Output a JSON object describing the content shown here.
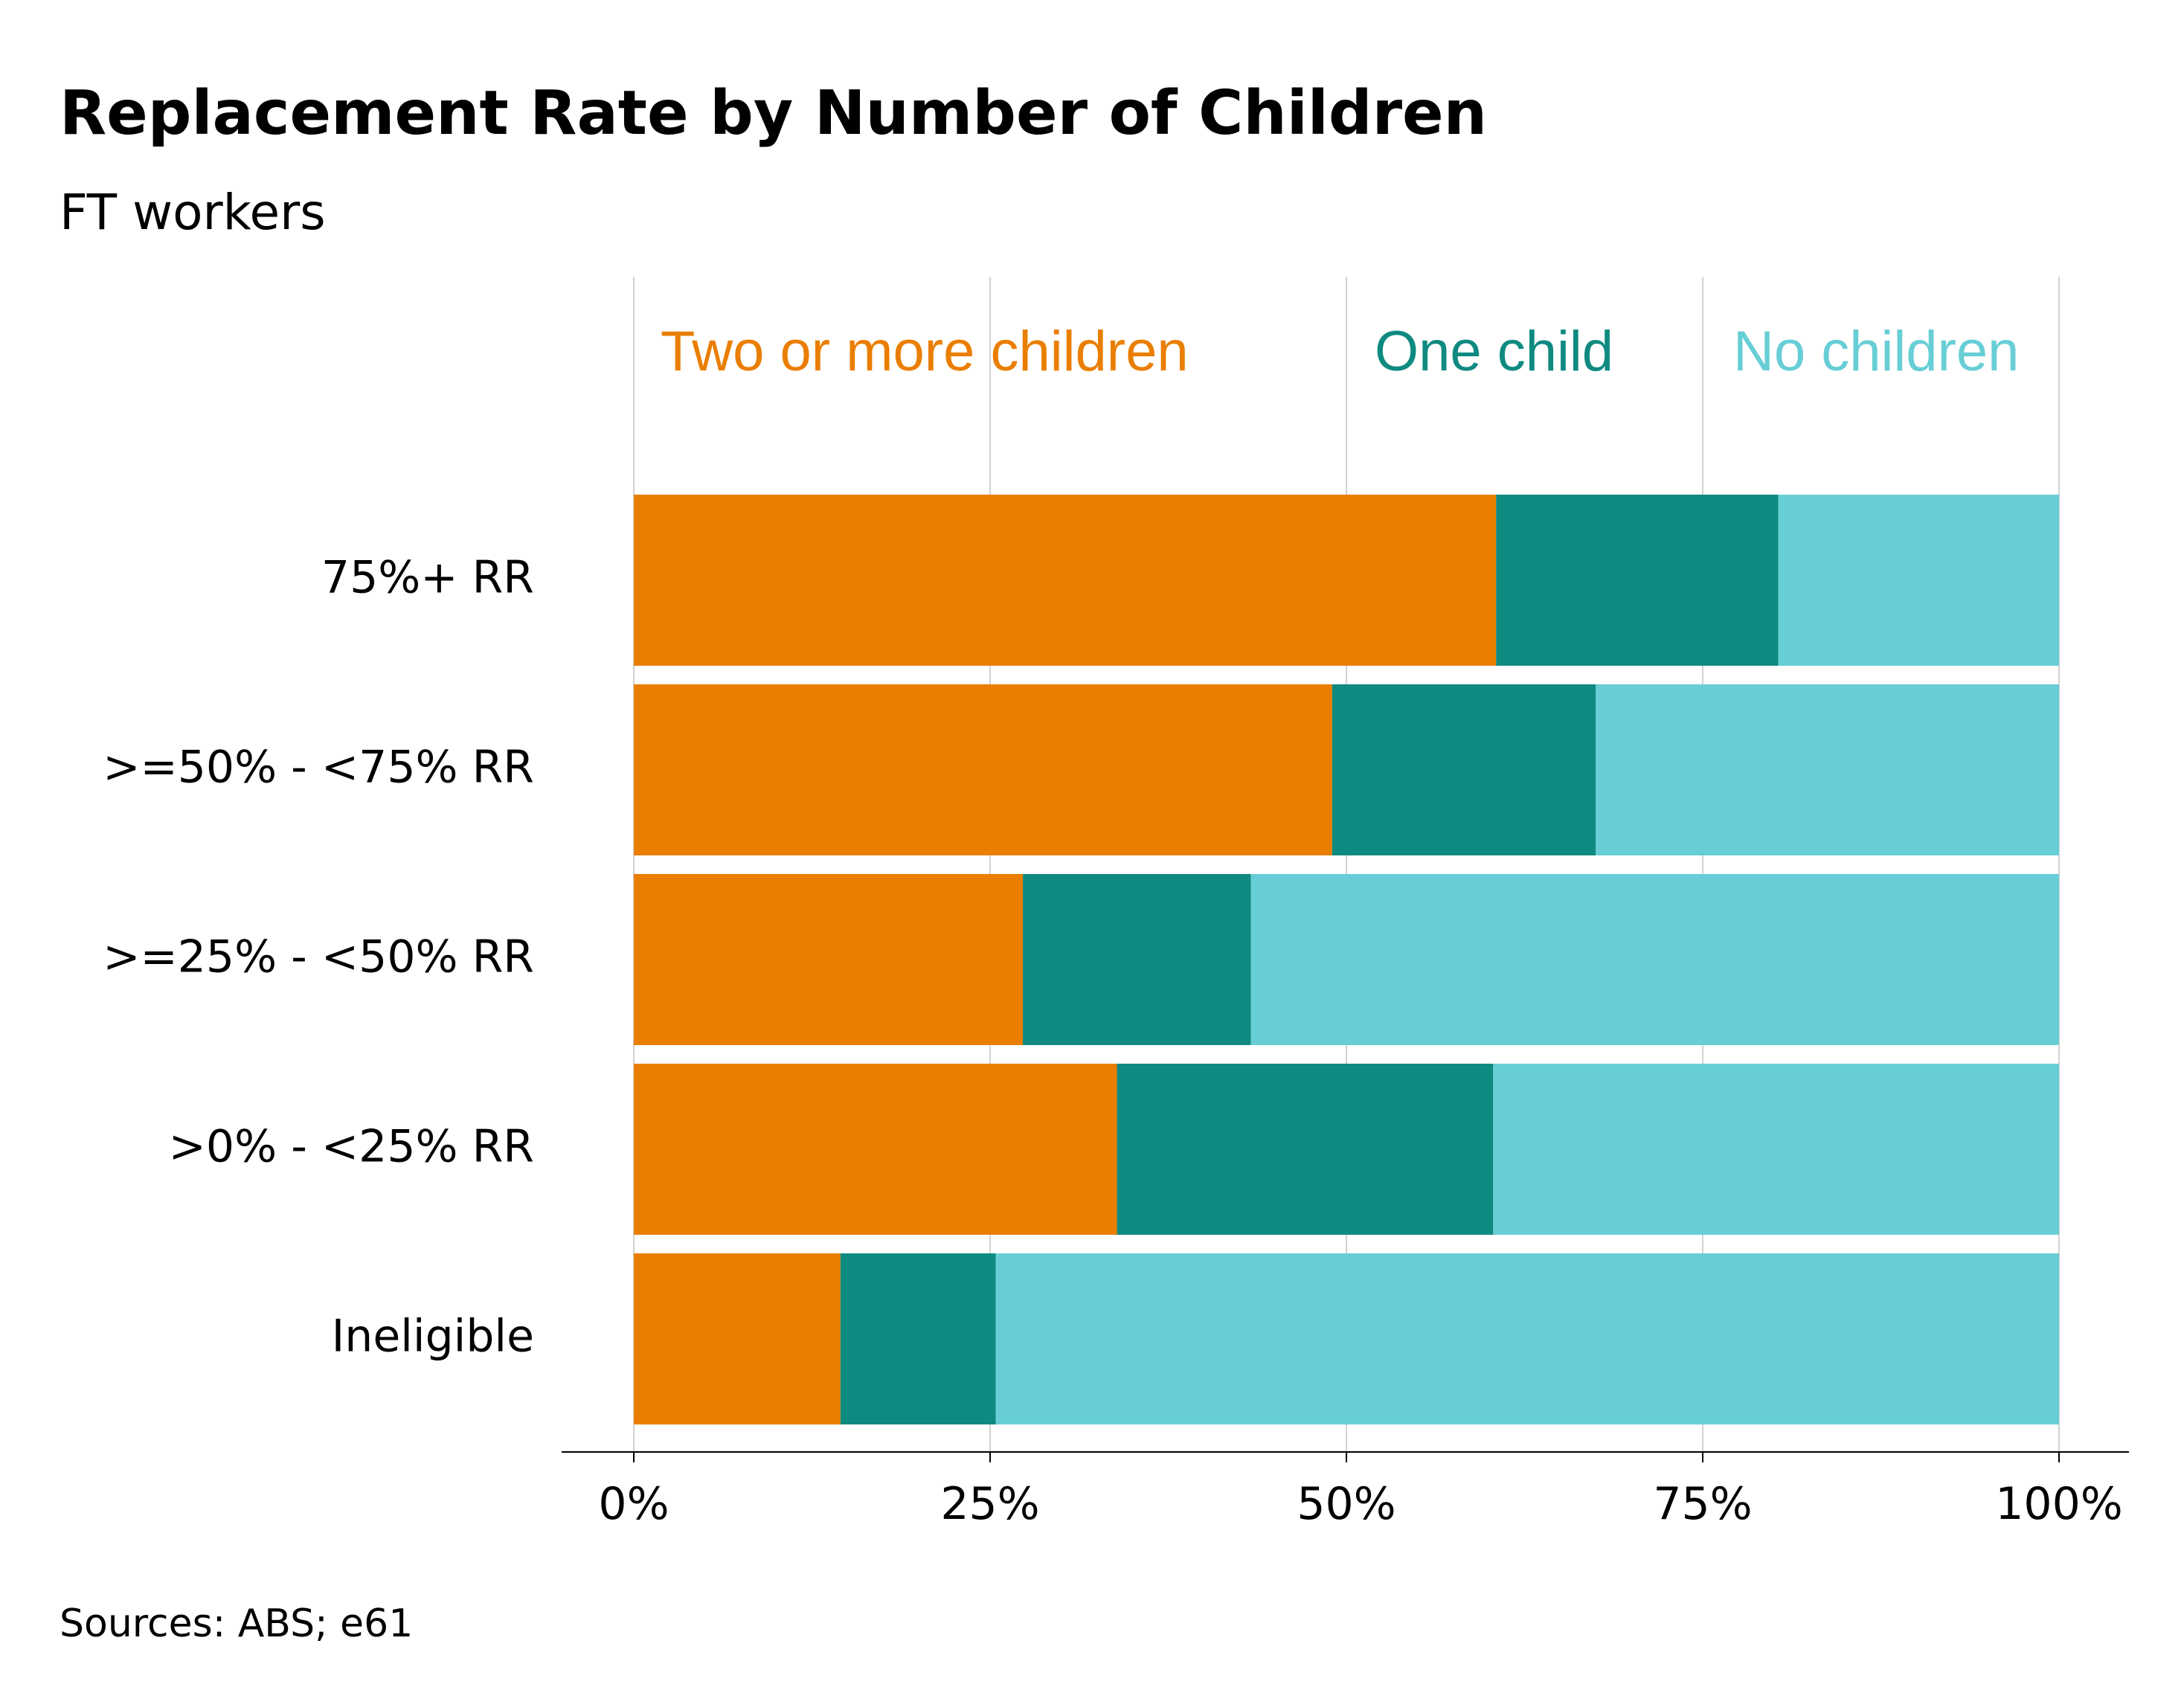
{
  "chart_data": {
    "type": "bar",
    "orientation": "horizontal",
    "stacked": true,
    "title": "Replacement Rate by Number of Children",
    "subtitle": "FT workers",
    "source": "Sources: ABS; e61",
    "categories": [
      "75%+ RR",
      ">=50% - <75% RR",
      ">=25% - <50% RR",
      ">0% - <25% RR",
      "Ineligible"
    ],
    "series": [
      {
        "name": "Two or more children",
        "color": "#EA7E00",
        "values": [
          60.5,
          49.0,
          27.3,
          33.9,
          14.5
        ]
      },
      {
        "name": "One child",
        "color": "#0F8A80",
        "values": [
          19.8,
          18.5,
          16.0,
          26.4,
          10.9
        ]
      },
      {
        "name": "No children",
        "color": "#67CED6",
        "values": [
          19.7,
          32.5,
          56.7,
          39.7,
          74.6
        ]
      }
    ],
    "xlim": [
      0,
      100
    ],
    "xticks": [
      0,
      25,
      50,
      75,
      100
    ],
    "xtick_labels": [
      "0%",
      "25%",
      "50%",
      "75%",
      "100%"
    ],
    "grid": true,
    "legend_position": "top"
  }
}
